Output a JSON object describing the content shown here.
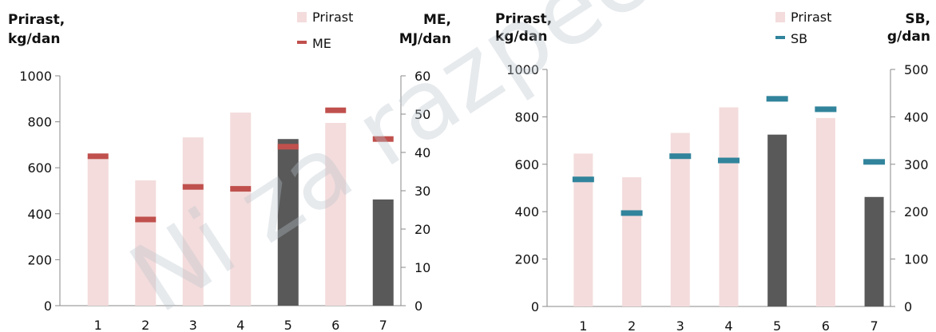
{
  "watermark": "Ni za razpečevanje",
  "chart_data": [
    {
      "type": "bar",
      "categories": [
        "1",
        "2",
        "3",
        "4",
        "5",
        "6",
        "7"
      ],
      "series": [
        {
          "name": "Prirast",
          "axis": "left",
          "values": [
            645,
            545,
            732,
            840,
            725,
            795,
            462
          ],
          "highlight": [
            false,
            false,
            false,
            false,
            true,
            false,
            true
          ]
        },
        {
          "name": "ME",
          "axis": "right",
          "marker": "dash",
          "values": [
            39,
            22.5,
            31,
            30.5,
            41.5,
            51,
            43.5
          ]
        }
      ],
      "ylabel_left": [
        "Prirast,",
        "kg/dan"
      ],
      "ylabel_right": [
        "ME,",
        "MJ/dan"
      ],
      "ylim_left": [
        0,
        1000
      ],
      "yticks_left": [
        0,
        200,
        400,
        600,
        800,
        1000
      ],
      "ylim_right": [
        0,
        60
      ],
      "yticks_right": [
        0,
        10,
        20,
        30,
        40,
        50,
        60
      ],
      "legend_position": "top",
      "grid": false
    },
    {
      "type": "bar",
      "categories": [
        "1",
        "2",
        "3",
        "4",
        "5",
        "6",
        "7"
      ],
      "series": [
        {
          "name": "Prirast",
          "axis": "left",
          "values": [
            645,
            545,
            732,
            840,
            725,
            795,
            462
          ],
          "highlight": [
            false,
            false,
            false,
            false,
            true,
            false,
            true
          ]
        },
        {
          "name": "SB",
          "axis": "right",
          "marker": "dash",
          "values": [
            268,
            197,
            317,
            308,
            438,
            416,
            305
          ]
        }
      ],
      "ylabel_left": [
        "Prirast,",
        "kg/dan"
      ],
      "ylabel_right": [
        "SB,",
        "g/dan"
      ],
      "ylim_left": [
        0,
        1000
      ],
      "yticks_left": [
        0,
        200,
        400,
        600,
        800,
        1000
      ],
      "ylim_right": [
        0,
        500
      ],
      "yticks_right": [
        0,
        100,
        200,
        300,
        400,
        500
      ],
      "legend_position": "top",
      "grid": false
    }
  ],
  "colors": {
    "bar": "#f4dcdc",
    "bar_highlight": "#595959",
    "me": "#c0504d",
    "sb": "#31849b",
    "axis": "#888888"
  }
}
